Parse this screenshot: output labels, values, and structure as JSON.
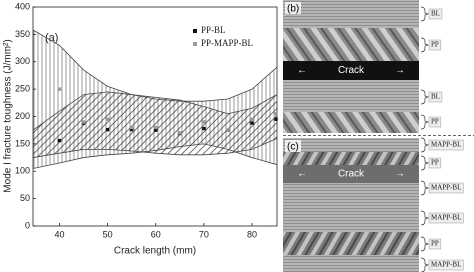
{
  "chart_data": {
    "type": "scatter",
    "panel_label": "(a)",
    "x_label": "Crack length (mm)",
    "y_label": "Mode I fracture toughness (J/mm²)",
    "xlim": [
      34.5,
      85.2
    ],
    "ylim": [
      0,
      400
    ],
    "xticks": [
      40,
      50,
      60,
      70,
      80
    ],
    "yticks": [
      0,
      50,
      100,
      150,
      200,
      250,
      300,
      350,
      400
    ],
    "x": [
      40,
      45,
      50,
      55,
      60,
      65,
      70,
      75,
      80,
      85
    ],
    "series": [
      {
        "name": "PP-BL",
        "color": "#111111",
        "values": [
          156,
          188,
          176,
          176,
          175,
          169,
          178,
          175,
          188,
          195
        ]
      },
      {
        "name": "PP-MAPP-BL",
        "color": "#999999",
        "values": [
          250,
          190,
          195,
          180,
          180,
          170,
          190,
          175,
          195,
          205
        ]
      }
    ],
    "bands": [
      {
        "hatch": "vertical",
        "x": [
          34.5,
          40,
          45,
          50,
          55,
          60,
          65,
          70,
          75,
          80,
          85.2
        ],
        "upper": [
          358,
          330,
          285,
          255,
          240,
          232,
          228,
          228,
          232,
          250,
          290
        ],
        "lower": [
          105,
          115,
          125,
          130,
          133,
          138,
          145,
          150,
          140,
          125,
          112
        ]
      },
      {
        "hatch": "diagonal",
        "x": [
          34.5,
          40,
          45,
          50,
          55,
          60,
          65,
          70,
          75,
          80,
          85.2
        ],
        "upper": [
          175,
          210,
          240,
          245,
          240,
          235,
          230,
          218,
          205,
          215,
          240
        ],
        "lower": [
          125,
          133,
          140,
          140,
          137,
          133,
          130,
          130,
          133,
          140,
          160
        ]
      }
    ]
  },
  "micrographs": [
    {
      "label": "(b)",
      "crack": "Crack",
      "layers": [
        "BL",
        "PP",
        "BL",
        "PP"
      ]
    },
    {
      "label": "(c)",
      "crack": "Crack",
      "layers": [
        "MAPP-BL",
        "PP",
        "MAPP-BL",
        "MAPP-BL",
        "PP",
        "MAPP-BL"
      ]
    }
  ]
}
